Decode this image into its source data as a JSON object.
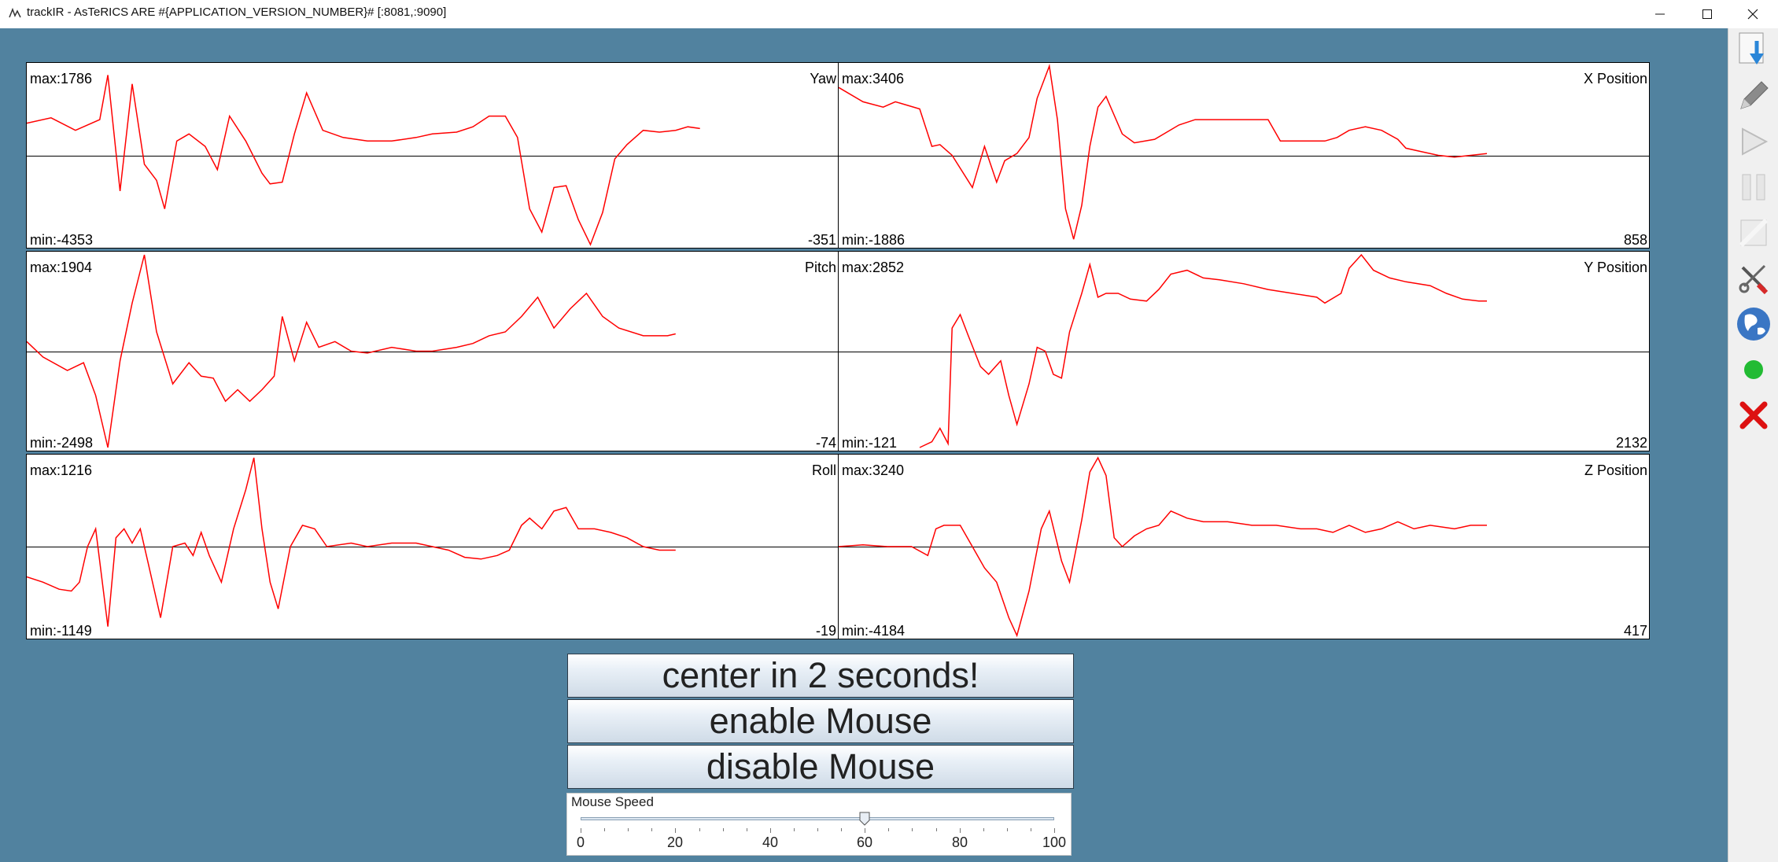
{
  "window": {
    "title": "trackIR - AsTeRICS ARE #{APPLICATION_VERSION_NUMBER}# [:8081,:9090]",
    "controls": [
      "minimize",
      "maximize",
      "close"
    ]
  },
  "plots": [
    {
      "name": "Yaw",
      "max": "max:1786",
      "min": "min:-4353",
      "current": "-351",
      "points": [
        [
          0,
          0.68
        ],
        [
          0.03,
          0.71
        ],
        [
          0.06,
          0.64
        ],
        [
          0.09,
          0.7
        ],
        [
          0.1,
          0.95
        ],
        [
          0.115,
          0.3
        ],
        [
          0.13,
          0.9
        ],
        [
          0.145,
          0.45
        ],
        [
          0.16,
          0.36
        ],
        [
          0.17,
          0.2
        ],
        [
          0.185,
          0.58
        ],
        [
          0.2,
          0.62
        ],
        [
          0.22,
          0.55
        ],
        [
          0.235,
          0.42
        ],
        [
          0.25,
          0.72
        ],
        [
          0.27,
          0.58
        ],
        [
          0.29,
          0.4
        ],
        [
          0.3,
          0.34
        ],
        [
          0.315,
          0.35
        ],
        [
          0.33,
          0.62
        ],
        [
          0.345,
          0.85
        ],
        [
          0.365,
          0.64
        ],
        [
          0.39,
          0.6
        ],
        [
          0.42,
          0.58
        ],
        [
          0.45,
          0.58
        ],
        [
          0.48,
          0.6
        ],
        [
          0.5,
          0.62
        ],
        [
          0.53,
          0.63
        ],
        [
          0.55,
          0.66
        ],
        [
          0.57,
          0.72
        ],
        [
          0.59,
          0.72
        ],
        [
          0.605,
          0.6
        ],
        [
          0.62,
          0.2
        ],
        [
          0.635,
          0.07
        ],
        [
          0.65,
          0.32
        ],
        [
          0.665,
          0.33
        ],
        [
          0.68,
          0.14
        ],
        [
          0.695,
          0.0
        ],
        [
          0.71,
          0.18
        ],
        [
          0.725,
          0.48
        ],
        [
          0.74,
          0.56
        ],
        [
          0.76,
          0.64
        ],
        [
          0.78,
          0.63
        ],
        [
          0.8,
          0.64
        ],
        [
          0.815,
          0.66
        ],
        [
          0.83,
          0.65
        ]
      ]
    },
    {
      "name": "X Position",
      "max": "max:3406",
      "min": "min:-1886",
      "current": "858",
      "points": [
        [
          0,
          0.88
        ],
        [
          0.03,
          0.8
        ],
        [
          0.055,
          0.77
        ],
        [
          0.07,
          0.8
        ],
        [
          0.1,
          0.76
        ],
        [
          0.115,
          0.55
        ],
        [
          0.125,
          0.56
        ],
        [
          0.14,
          0.5
        ],
        [
          0.165,
          0.32
        ],
        [
          0.18,
          0.55
        ],
        [
          0.195,
          0.35
        ],
        [
          0.205,
          0.47
        ],
        [
          0.22,
          0.51
        ],
        [
          0.235,
          0.6
        ],
        [
          0.245,
          0.82
        ],
        [
          0.26,
          1.0
        ],
        [
          0.27,
          0.7
        ],
        [
          0.28,
          0.2
        ],
        [
          0.29,
          0.03
        ],
        [
          0.3,
          0.22
        ],
        [
          0.31,
          0.55
        ],
        [
          0.32,
          0.77
        ],
        [
          0.33,
          0.83
        ],
        [
          0.35,
          0.62
        ],
        [
          0.365,
          0.57
        ],
        [
          0.39,
          0.59
        ],
        [
          0.42,
          0.67
        ],
        [
          0.44,
          0.7
        ],
        [
          0.47,
          0.7
        ],
        [
          0.5,
          0.7
        ],
        [
          0.53,
          0.7
        ],
        [
          0.545,
          0.58
        ],
        [
          0.57,
          0.58
        ],
        [
          0.6,
          0.58
        ],
        [
          0.615,
          0.6
        ],
        [
          0.63,
          0.64
        ],
        [
          0.65,
          0.66
        ],
        [
          0.67,
          0.64
        ],
        [
          0.69,
          0.59
        ],
        [
          0.7,
          0.54
        ],
        [
          0.72,
          0.52
        ],
        [
          0.74,
          0.5
        ],
        [
          0.76,
          0.49
        ],
        [
          0.78,
          0.5
        ],
        [
          0.8,
          0.51
        ]
      ]
    },
    {
      "name": "Pitch",
      "max": "max:1904",
      "min": "min:-2498",
      "current": "-74",
      "points": [
        [
          0,
          0.55
        ],
        [
          0.02,
          0.47
        ],
        [
          0.05,
          0.4
        ],
        [
          0.07,
          0.44
        ],
        [
          0.085,
          0.27
        ],
        [
          0.1,
          0.0
        ],
        [
          0.115,
          0.45
        ],
        [
          0.13,
          0.75
        ],
        [
          0.145,
          1.0
        ],
        [
          0.16,
          0.6
        ],
        [
          0.18,
          0.33
        ],
        [
          0.2,
          0.44
        ],
        [
          0.215,
          0.37
        ],
        [
          0.23,
          0.36
        ],
        [
          0.245,
          0.24
        ],
        [
          0.26,
          0.3
        ],
        [
          0.275,
          0.24
        ],
        [
          0.29,
          0.3
        ],
        [
          0.305,
          0.37
        ],
        [
          0.315,
          0.68
        ],
        [
          0.33,
          0.45
        ],
        [
          0.345,
          0.65
        ],
        [
          0.36,
          0.52
        ],
        [
          0.38,
          0.55
        ],
        [
          0.4,
          0.5
        ],
        [
          0.42,
          0.49
        ],
        [
          0.45,
          0.52
        ],
        [
          0.48,
          0.5
        ],
        [
          0.5,
          0.5
        ],
        [
          0.53,
          0.52
        ],
        [
          0.55,
          0.54
        ],
        [
          0.57,
          0.58
        ],
        [
          0.59,
          0.6
        ],
        [
          0.61,
          0.68
        ],
        [
          0.63,
          0.78
        ],
        [
          0.65,
          0.62
        ],
        [
          0.67,
          0.72
        ],
        [
          0.69,
          0.8
        ],
        [
          0.71,
          0.68
        ],
        [
          0.73,
          0.62
        ],
        [
          0.76,
          0.58
        ],
        [
          0.79,
          0.58
        ],
        [
          0.8,
          0.59
        ]
      ]
    },
    {
      "name": "Y Position",
      "max": "max:2852",
      "min": "min:-121",
      "current": "2132",
      "points": [
        [
          0.1,
          0.0
        ],
        [
          0.115,
          0.03
        ],
        [
          0.125,
          0.1
        ],
        [
          0.135,
          0.02
        ],
        [
          0.14,
          0.62
        ],
        [
          0.15,
          0.69
        ],
        [
          0.16,
          0.58
        ],
        [
          0.175,
          0.42
        ],
        [
          0.185,
          0.38
        ],
        [
          0.2,
          0.45
        ],
        [
          0.21,
          0.27
        ],
        [
          0.22,
          0.12
        ],
        [
          0.235,
          0.33
        ],
        [
          0.245,
          0.52
        ],
        [
          0.255,
          0.5
        ],
        [
          0.265,
          0.38
        ],
        [
          0.275,
          0.36
        ],
        [
          0.285,
          0.6
        ],
        [
          0.3,
          0.8
        ],
        [
          0.31,
          0.95
        ],
        [
          0.32,
          0.78
        ],
        [
          0.33,
          0.8
        ],
        [
          0.345,
          0.8
        ],
        [
          0.36,
          0.77
        ],
        [
          0.38,
          0.76
        ],
        [
          0.395,
          0.82
        ],
        [
          0.41,
          0.9
        ],
        [
          0.43,
          0.92
        ],
        [
          0.45,
          0.88
        ],
        [
          0.47,
          0.87
        ],
        [
          0.5,
          0.85
        ],
        [
          0.53,
          0.82
        ],
        [
          0.56,
          0.8
        ],
        [
          0.59,
          0.78
        ],
        [
          0.6,
          0.75
        ],
        [
          0.62,
          0.8
        ],
        [
          0.63,
          0.93
        ],
        [
          0.645,
          1.0
        ],
        [
          0.66,
          0.92
        ],
        [
          0.68,
          0.88
        ],
        [
          0.7,
          0.86
        ],
        [
          0.73,
          0.84
        ],
        [
          0.75,
          0.8
        ],
        [
          0.77,
          0.77
        ],
        [
          0.79,
          0.76
        ],
        [
          0.8,
          0.76
        ]
      ]
    },
    {
      "name": "Roll",
      "max": "max:1216",
      "min": "min:-1149",
      "current": "-19",
      "points": [
        [
          0,
          0.33
        ],
        [
          0.02,
          0.3
        ],
        [
          0.04,
          0.26
        ],
        [
          0.055,
          0.25
        ],
        [
          0.065,
          0.3
        ],
        [
          0.075,
          0.5
        ],
        [
          0.085,
          0.6
        ],
        [
          0.1,
          0.05
        ],
        [
          0.11,
          0.55
        ],
        [
          0.12,
          0.6
        ],
        [
          0.13,
          0.52
        ],
        [
          0.14,
          0.6
        ],
        [
          0.15,
          0.4
        ],
        [
          0.165,
          0.1
        ],
        [
          0.18,
          0.5
        ],
        [
          0.195,
          0.52
        ],
        [
          0.205,
          0.45
        ],
        [
          0.215,
          0.58
        ],
        [
          0.225,
          0.45
        ],
        [
          0.24,
          0.3
        ],
        [
          0.255,
          0.6
        ],
        [
          0.27,
          0.82
        ],
        [
          0.28,
          1.0
        ],
        [
          0.29,
          0.6
        ],
        [
          0.3,
          0.3
        ],
        [
          0.31,
          0.15
        ],
        [
          0.325,
          0.5
        ],
        [
          0.34,
          0.62
        ],
        [
          0.355,
          0.6
        ],
        [
          0.37,
          0.5
        ],
        [
          0.4,
          0.52
        ],
        [
          0.42,
          0.5
        ],
        [
          0.45,
          0.52
        ],
        [
          0.48,
          0.52
        ],
        [
          0.5,
          0.5
        ],
        [
          0.52,
          0.48
        ],
        [
          0.54,
          0.44
        ],
        [
          0.56,
          0.43
        ],
        [
          0.58,
          0.45
        ],
        [
          0.595,
          0.48
        ],
        [
          0.61,
          0.62
        ],
        [
          0.62,
          0.66
        ],
        [
          0.635,
          0.6
        ],
        [
          0.65,
          0.7
        ],
        [
          0.665,
          0.72
        ],
        [
          0.68,
          0.6
        ],
        [
          0.7,
          0.6
        ],
        [
          0.72,
          0.58
        ],
        [
          0.74,
          0.55
        ],
        [
          0.76,
          0.5
        ],
        [
          0.78,
          0.48
        ],
        [
          0.8,
          0.48
        ]
      ]
    },
    {
      "name": "Z Position",
      "max": "max:3240",
      "min": "min:-4184",
      "current": "417",
      "points": [
        [
          0,
          0.5
        ],
        [
          0.03,
          0.51
        ],
        [
          0.06,
          0.5
        ],
        [
          0.09,
          0.5
        ],
        [
          0.11,
          0.45
        ],
        [
          0.12,
          0.6
        ],
        [
          0.13,
          0.62
        ],
        [
          0.15,
          0.62
        ],
        [
          0.165,
          0.5
        ],
        [
          0.18,
          0.38
        ],
        [
          0.195,
          0.3
        ],
        [
          0.21,
          0.1
        ],
        [
          0.22,
          0.0
        ],
        [
          0.235,
          0.25
        ],
        [
          0.25,
          0.6
        ],
        [
          0.26,
          0.7
        ],
        [
          0.275,
          0.42
        ],
        [
          0.285,
          0.3
        ],
        [
          0.3,
          0.65
        ],
        [
          0.31,
          0.92
        ],
        [
          0.32,
          1.0
        ],
        [
          0.33,
          0.9
        ],
        [
          0.34,
          0.55
        ],
        [
          0.35,
          0.5
        ],
        [
          0.365,
          0.56
        ],
        [
          0.38,
          0.6
        ],
        [
          0.395,
          0.62
        ],
        [
          0.41,
          0.7
        ],
        [
          0.43,
          0.66
        ],
        [
          0.45,
          0.64
        ],
        [
          0.48,
          0.64
        ],
        [
          0.51,
          0.62
        ],
        [
          0.54,
          0.62
        ],
        [
          0.57,
          0.6
        ],
        [
          0.59,
          0.6
        ],
        [
          0.61,
          0.58
        ],
        [
          0.63,
          0.62
        ],
        [
          0.65,
          0.58
        ],
        [
          0.67,
          0.6
        ],
        [
          0.69,
          0.64
        ],
        [
          0.71,
          0.6
        ],
        [
          0.73,
          0.62
        ],
        [
          0.76,
          0.6
        ],
        [
          0.78,
          0.62
        ],
        [
          0.8,
          0.62
        ]
      ]
    }
  ],
  "buttons": {
    "center": "center in 2 seconds!",
    "enable": "enable Mouse",
    "disable": "disable Mouse"
  },
  "slider": {
    "caption": "Mouse Speed",
    "value": 60,
    "min": 0,
    "max": 100,
    "labels": [
      "0",
      "20",
      "40",
      "60",
      "80",
      "100"
    ]
  },
  "toolbar": {
    "tools": [
      "download-icon",
      "pencil-icon",
      "play-icon",
      "pause-icon",
      "stop-icon",
      "tools-icon",
      "globe-icon",
      "status-green-icon",
      "close-red-icon"
    ],
    "status_color": "#22bb33",
    "close_color": "#dd1111"
  },
  "colors": {
    "background": "#51829f",
    "signal": "#ff0000"
  }
}
